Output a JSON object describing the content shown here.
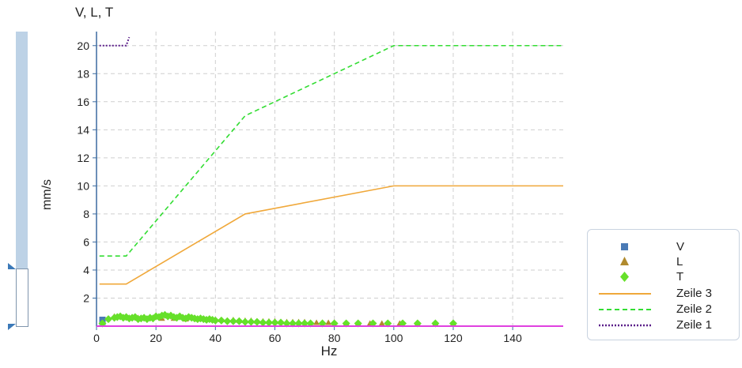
{
  "chart_data": {
    "type": "line",
    "title": "V, L, T",
    "xlabel": "Hz",
    "ylabel": "mm/s",
    "xlim": [
      0,
      157
    ],
    "ylim": [
      0,
      21
    ],
    "x_ticks": [
      0,
      20,
      40,
      60,
      80,
      100,
      120,
      140
    ],
    "y_ticks": [
      2,
      4,
      6,
      8,
      10,
      12,
      14,
      16,
      18,
      20
    ],
    "grid": true,
    "legend_position": "right",
    "series": [
      {
        "name": "V",
        "kind": "scatter",
        "marker": "square",
        "color": "#4a7ab5",
        "points": [
          [
            2,
            0.45
          ],
          [
            2,
            0.3
          ]
        ]
      },
      {
        "name": "L",
        "kind": "scatter",
        "marker": "triangle",
        "color": "#b08a2e",
        "points": [
          [
            6,
            0.7
          ],
          [
            10,
            0.65
          ],
          [
            14,
            0.6
          ],
          [
            18,
            0.6
          ],
          [
            22,
            0.55
          ],
          [
            26,
            0.55
          ],
          [
            30,
            0.5
          ],
          [
            34,
            0.5
          ],
          [
            38,
            0.5
          ],
          [
            42,
            0.45
          ],
          [
            46,
            0.45
          ],
          [
            48,
            0.4
          ],
          [
            50,
            0.4
          ],
          [
            52,
            0.4
          ],
          [
            54,
            0.35
          ],
          [
            56,
            0.35
          ],
          [
            58,
            0.35
          ],
          [
            60,
            0.35
          ],
          [
            62,
            0.3
          ],
          [
            64,
            0.3
          ],
          [
            66,
            0.3
          ],
          [
            68,
            0.3
          ],
          [
            70,
            0.3
          ],
          [
            72,
            0.25
          ],
          [
            74,
            0.25
          ],
          [
            76,
            0.25
          ],
          [
            78,
            0.25
          ],
          [
            80,
            0.25
          ],
          [
            84,
            0.2
          ],
          [
            88,
            0.2
          ],
          [
            92,
            0.2
          ],
          [
            96,
            0.2
          ],
          [
            102,
            0.2
          ],
          [
            108,
            0.2
          ],
          [
            114,
            0.2
          ],
          [
            120,
            0.2
          ]
        ]
      },
      {
        "name": "T",
        "kind": "scatter",
        "marker": "diamond",
        "color": "#66e02a",
        "points": [
          [
            2,
            0.2
          ],
          [
            4,
            0.5
          ],
          [
            6,
            0.6
          ],
          [
            7,
            0.65
          ],
          [
            8,
            0.7
          ],
          [
            9,
            0.6
          ],
          [
            10,
            0.65
          ],
          [
            11,
            0.55
          ],
          [
            12,
            0.6
          ],
          [
            13,
            0.65
          ],
          [
            14,
            0.5
          ],
          [
            15,
            0.55
          ],
          [
            16,
            0.6
          ],
          [
            17,
            0.5
          ],
          [
            18,
            0.6
          ],
          [
            19,
            0.55
          ],
          [
            20,
            0.7
          ],
          [
            21,
            0.65
          ],
          [
            22,
            0.75
          ],
          [
            23,
            0.8
          ],
          [
            24,
            0.7
          ],
          [
            25,
            0.75
          ],
          [
            26,
            0.65
          ],
          [
            27,
            0.6
          ],
          [
            28,
            0.7
          ],
          [
            29,
            0.6
          ],
          [
            30,
            0.55
          ],
          [
            31,
            0.65
          ],
          [
            32,
            0.6
          ],
          [
            33,
            0.55
          ],
          [
            34,
            0.5
          ],
          [
            35,
            0.55
          ],
          [
            36,
            0.5
          ],
          [
            37,
            0.45
          ],
          [
            38,
            0.5
          ],
          [
            39,
            0.45
          ],
          [
            40,
            0.4
          ],
          [
            42,
            0.4
          ],
          [
            44,
            0.35
          ],
          [
            46,
            0.35
          ],
          [
            48,
            0.35
          ],
          [
            50,
            0.3
          ],
          [
            52,
            0.3
          ],
          [
            54,
            0.3
          ],
          [
            56,
            0.25
          ],
          [
            58,
            0.25
          ],
          [
            60,
            0.25
          ],
          [
            62,
            0.25
          ],
          [
            64,
            0.2
          ],
          [
            66,
            0.2
          ],
          [
            68,
            0.2
          ],
          [
            70,
            0.2
          ],
          [
            72,
            0.2
          ],
          [
            76,
            0.2
          ],
          [
            80,
            0.2
          ],
          [
            84,
            0.2
          ],
          [
            88,
            0.2
          ],
          [
            93,
            0.2
          ],
          [
            98,
            0.2
          ],
          [
            103,
            0.2
          ],
          [
            108,
            0.2
          ],
          [
            114,
            0.2
          ],
          [
            120,
            0.2
          ]
        ]
      },
      {
        "name": "Zeile 3",
        "kind": "line",
        "dash": "solid",
        "color": "#f0a83a",
        "points": [
          [
            1,
            3
          ],
          [
            10,
            3
          ],
          [
            50,
            8
          ],
          [
            100,
            10
          ],
          [
            157,
            10
          ]
        ]
      },
      {
        "name": "Zeile 2",
        "kind": "line",
        "dash": "dashed",
        "color": "#33dd33",
        "points": [
          [
            1,
            5
          ],
          [
            10,
            5
          ],
          [
            50,
            15
          ],
          [
            100,
            20
          ],
          [
            157,
            20
          ]
        ]
      },
      {
        "name": "Zeile 1",
        "kind": "line",
        "dash": "dotted",
        "color": "#5b1f8a",
        "points": [
          [
            1,
            20
          ],
          [
            10,
            20
          ],
          [
            11,
            20.6
          ]
        ]
      },
      {
        "kind": "baseline",
        "color": "#e040e0",
        "points": [
          [
            0,
            0
          ],
          [
            157,
            0
          ]
        ]
      }
    ]
  },
  "colors": {
    "axis": "#3b6aa0",
    "grid": "#cfcfcf",
    "slider_track": "#bdd2e6",
    "slider_handle": "#3b79b8"
  }
}
